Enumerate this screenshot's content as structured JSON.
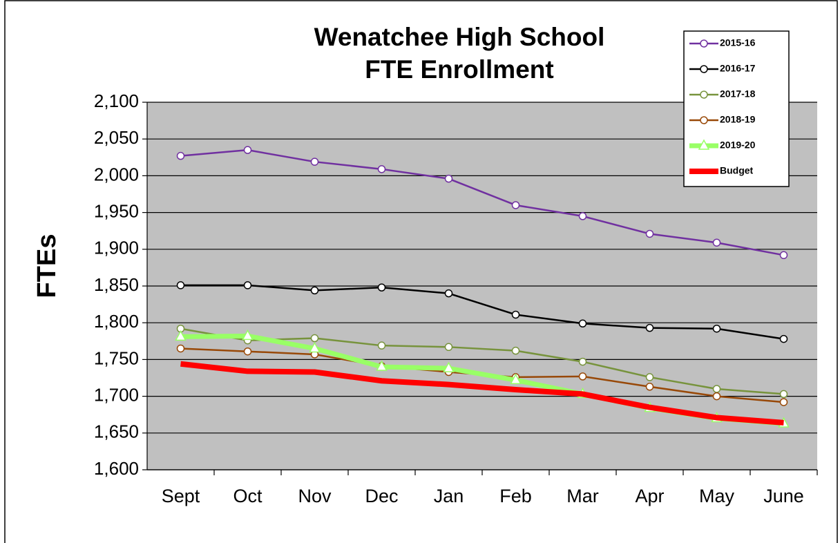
{
  "chart_data": {
    "type": "line",
    "title": "Wenatchee High School",
    "subtitle": "FTE Enrollment",
    "y_label": "FTEs",
    "categories": [
      "Sept",
      "Oct",
      "Nov",
      "Dec",
      "Jan",
      "Feb",
      "Mar",
      "Apr",
      "May",
      "June"
    ],
    "series": [
      {
        "name": "2015-16",
        "color": "#7030a0",
        "marker": "circle",
        "values": [
          2027,
          2035,
          2019,
          2009,
          1996,
          1960,
          1945,
          1921,
          1909,
          1892
        ]
      },
      {
        "name": "2016-17",
        "color": "#000000",
        "marker": "circle",
        "values": [
          1851,
          1851,
          1844,
          1848,
          1840,
          1811,
          1799,
          1793,
          1792,
          1778
        ]
      },
      {
        "name": "2017-18",
        "color": "#77933c",
        "marker": "circle",
        "values": [
          1792,
          1776,
          1779,
          1769,
          1767,
          1762,
          1747,
          1726,
          1710,
          1703
        ]
      },
      {
        "name": "2018-19",
        "color": "#984807",
        "marker": "circle",
        "values": [
          1765,
          1761,
          1757,
          1741,
          1733,
          1726,
          1727,
          1713,
          1700,
          1692
        ]
      },
      {
        "name": "2019-20",
        "color": "#99ff66",
        "marker": "triangle",
        "values": [
          1781,
          1782,
          1765,
          1740,
          1738,
          1722,
          1703,
          1684,
          1670,
          1663
        ]
      },
      {
        "name": "Budget",
        "color": "#ff0000",
        "marker": "none",
        "values": [
          1744,
          1734,
          1733,
          1721,
          1716,
          1709,
          1703,
          1685,
          1671,
          1664
        ]
      }
    ],
    "ylim": [
      1600,
      2100
    ],
    "yticks": [
      {
        "value": 1600,
        "label": "1,600"
      },
      {
        "value": 1650,
        "label": "1,650"
      },
      {
        "value": 1700,
        "label": "1,700"
      },
      {
        "value": 1750,
        "label": "1,750"
      },
      {
        "value": 1800,
        "label": "1,800"
      },
      {
        "value": 1850,
        "label": "1,850"
      },
      {
        "value": 1900,
        "label": "1,900"
      },
      {
        "value": 1950,
        "label": "1,950"
      },
      {
        "value": 2000,
        "label": "2,000"
      },
      {
        "value": 2050,
        "label": "2,050"
      },
      {
        "value": 2100,
        "label": "2,100"
      }
    ],
    "grid": true,
    "legend": "top-right"
  }
}
